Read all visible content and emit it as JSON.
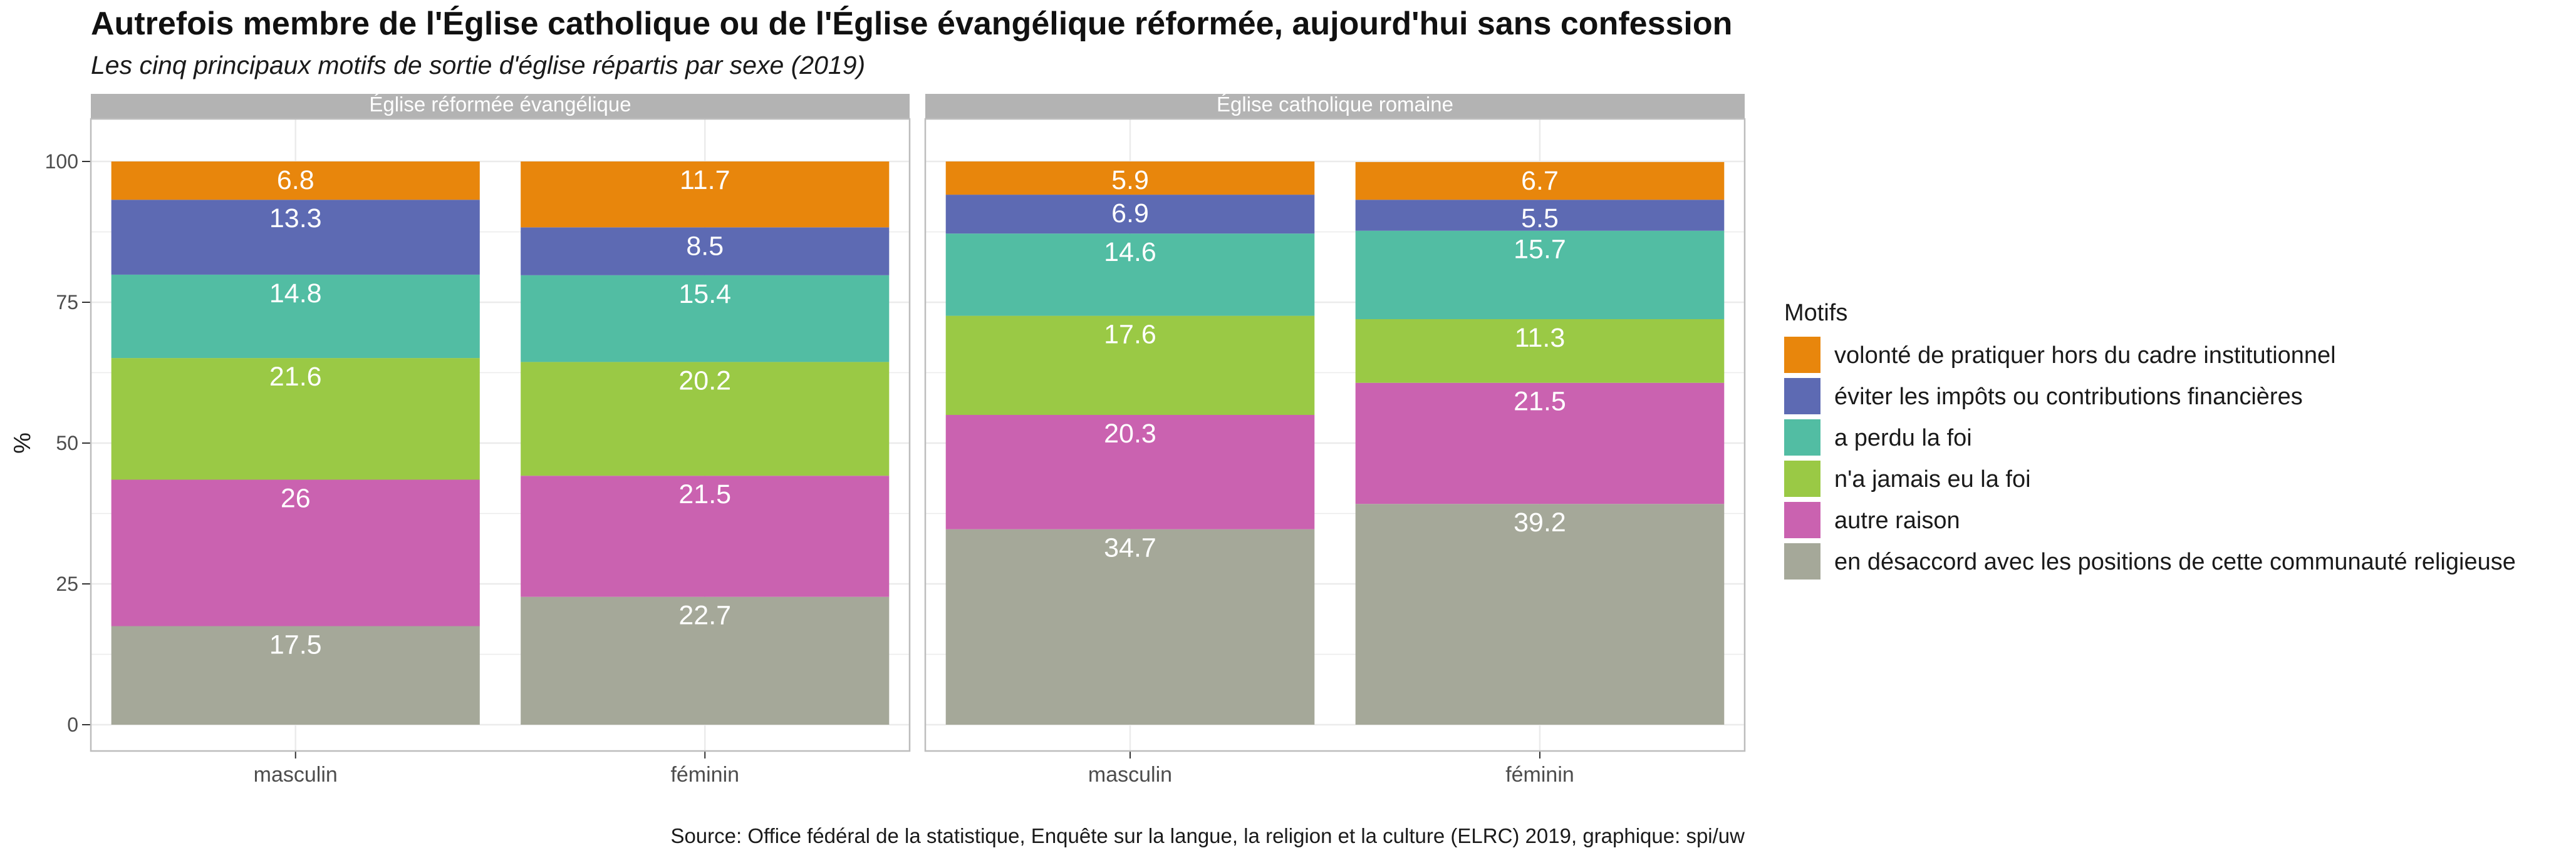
{
  "title": "Autrefois membre de l'Église catholique ou de l'Église évangélique réformée, aujourd'hui sans confession",
  "subtitle": "Les cinq principaux motifs de sortie d'église répartis par sexe (2019)",
  "caption": "Source: Office fédéral de la statistique, Enquête sur la langue, la religion et la culture (ELRC) 2019, graphique: spi/uw",
  "legend_title": "Motifs",
  "chart_data": {
    "type": "bar",
    "stacked": true,
    "ylabel": "%",
    "xlabel": "",
    "ylim": [
      0,
      100
    ],
    "yticks": [
      0,
      25,
      50,
      75,
      100
    ],
    "grid": true,
    "legend_position": "right",
    "categories": [
      "masculin",
      "féminin"
    ],
    "series": [
      {
        "name": "en désaccord avec les positions de cette communauté religieuse",
        "color": "#A5A899"
      },
      {
        "name": "autre raison",
        "color": "#CA62B0"
      },
      {
        "name": "n'a jamais eu la foi",
        "color": "#9AC945"
      },
      {
        "name": "a perdu la foi",
        "color": "#52BDA3"
      },
      {
        "name": "éviter les impôts ou contributions financières",
        "color": "#5D6AB3"
      },
      {
        "name": "volonté de pratiquer hors du cadre institutionnel",
        "color": "#E8860C"
      }
    ],
    "panels": [
      {
        "label": "Église réformée évangélique",
        "values": [
          [
            17.5,
            26,
            21.6,
            14.8,
            13.3,
            6.8
          ],
          [
            22.7,
            21.5,
            20.2,
            15.4,
            8.5,
            11.7
          ]
        ]
      },
      {
        "label": "Église catholique romaine",
        "values": [
          [
            34.7,
            20.3,
            17.6,
            14.6,
            6.9,
            5.9
          ],
          [
            39.2,
            21.5,
            11.3,
            15.7,
            5.5,
            6.7
          ]
        ]
      }
    ]
  }
}
